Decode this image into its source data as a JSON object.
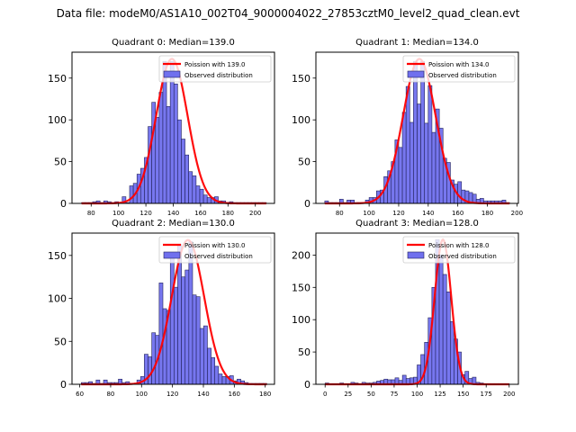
{
  "suptitle": "Data file: modeM0/AS1A10_002T04_9000004022_27853cztM0_level2_quad_clean.evt",
  "colors": {
    "bar_fill": "#7070ee",
    "bar_edge": "#22225a",
    "curve": "#ff0000"
  },
  "chart_data": [
    {
      "type": "bar",
      "title": "Quadrant 0: Median=139.0",
      "legend": [
        "Poission with 139.0",
        "Observed distribution"
      ],
      "legend_position": "top-right",
      "xlim": [
        66,
        214
      ],
      "ylim": [
        0,
        181
      ],
      "xticks": [
        80,
        100,
        120,
        140,
        160,
        180,
        200
      ],
      "yticks": [
        0,
        50,
        100,
        150
      ],
      "mean": 139.0,
      "curve_peak": 173,
      "curve_sigma": 11.5,
      "bin_start": 73,
      "bin_width": 2.7,
      "values": [
        1,
        1,
        1,
        2,
        3,
        1,
        3,
        2,
        1,
        2,
        1,
        8,
        1,
        21,
        24,
        35,
        42,
        55,
        92,
        121,
        103,
        133,
        170,
        116,
        170,
        143,
        100,
        77,
        58,
        38,
        33,
        21,
        17,
        10,
        7,
        7,
        8,
        3,
        3,
        1,
        2,
        1,
        1,
        1,
        1,
        1,
        1,
        1,
        1,
        1
      ]
    },
    {
      "type": "bar",
      "title": "Quadrant 1: Median=134.0",
      "legend": [
        "Poission with 134.0",
        "Observed distribution"
      ],
      "legend_position": "top-right",
      "xlim": [
        64,
        201
      ],
      "ylim": [
        0,
        181
      ],
      "xticks": [
        80,
        100,
        120,
        140,
        160,
        180,
        200
      ],
      "yticks": [
        0,
        50,
        100,
        150
      ],
      "mean": 134.0,
      "curve_peak": 173,
      "curve_sigma": 11.0,
      "bin_start": 70,
      "bin_width": 2.5,
      "values": [
        3,
        1,
        1,
        1,
        5,
        1,
        4,
        4,
        1,
        1,
        1,
        4,
        7,
        7,
        15,
        16,
        32,
        39,
        50,
        76,
        67,
        109,
        140,
        97,
        170,
        119,
        170,
        96,
        141,
        85,
        113,
        90,
        54,
        49,
        28,
        23,
        26,
        16,
        15,
        13,
        11,
        5,
        6,
        3,
        3,
        3,
        3,
        3,
        4,
        1
      ]
    },
    {
      "type": "bar",
      "title": "Quadrant 2: Median=130.0",
      "legend": [
        "Poission with 130.0",
        "Observed distribution"
      ],
      "legend_position": "top-right",
      "xlim": [
        55,
        186
      ],
      "ylim": [
        0,
        176
      ],
      "xticks": [
        60,
        80,
        100,
        120,
        140,
        160,
        180
      ],
      "yticks": [
        0,
        50,
        100,
        150
      ],
      "mean": 130.0,
      "curve_peak": 168,
      "curve_sigma": 10.5,
      "bin_start": 61,
      "bin_width": 2.4,
      "values": [
        2,
        2,
        3,
        1,
        5,
        1,
        5,
        2,
        2,
        2,
        6,
        2,
        3,
        1,
        1,
        5,
        9,
        35,
        32,
        60,
        57,
        118,
        88,
        86,
        150,
        113,
        163,
        125,
        133,
        166,
        104,
        102,
        65,
        68,
        42,
        31,
        21,
        12,
        9,
        9,
        10,
        4,
        6,
        4,
        2,
        1,
        1,
        1,
        1,
        1
      ]
    },
    {
      "type": "bar",
      "title": "Quadrant 3: Median=128.0",
      "legend": [
        "Poission with 128.0",
        "Observed distribution"
      ],
      "legend_position": "top-right",
      "xlim": [
        -10,
        210
      ],
      "ylim": [
        0,
        234
      ],
      "xticks": [
        0,
        25,
        50,
        75,
        100,
        125,
        150,
        175,
        200
      ],
      "yticks": [
        0,
        50,
        100,
        150,
        200
      ],
      "mean": 128.0,
      "curve_peak": 224,
      "curve_sigma": 9.0,
      "bin_start": 0,
      "bin_width": 4.0,
      "values": [
        2,
        1,
        1,
        1,
        2,
        1,
        1,
        3,
        2,
        1,
        3,
        2,
        2,
        3,
        5,
        6,
        8,
        7,
        7,
        10,
        6,
        14,
        9,
        10,
        11,
        30,
        46,
        65,
        103,
        150,
        224,
        200,
        170,
        143,
        97,
        70,
        50,
        15,
        20,
        9,
        11,
        3,
        2,
        1,
        1,
        1,
        1,
        1,
        1,
        1
      ]
    }
  ]
}
